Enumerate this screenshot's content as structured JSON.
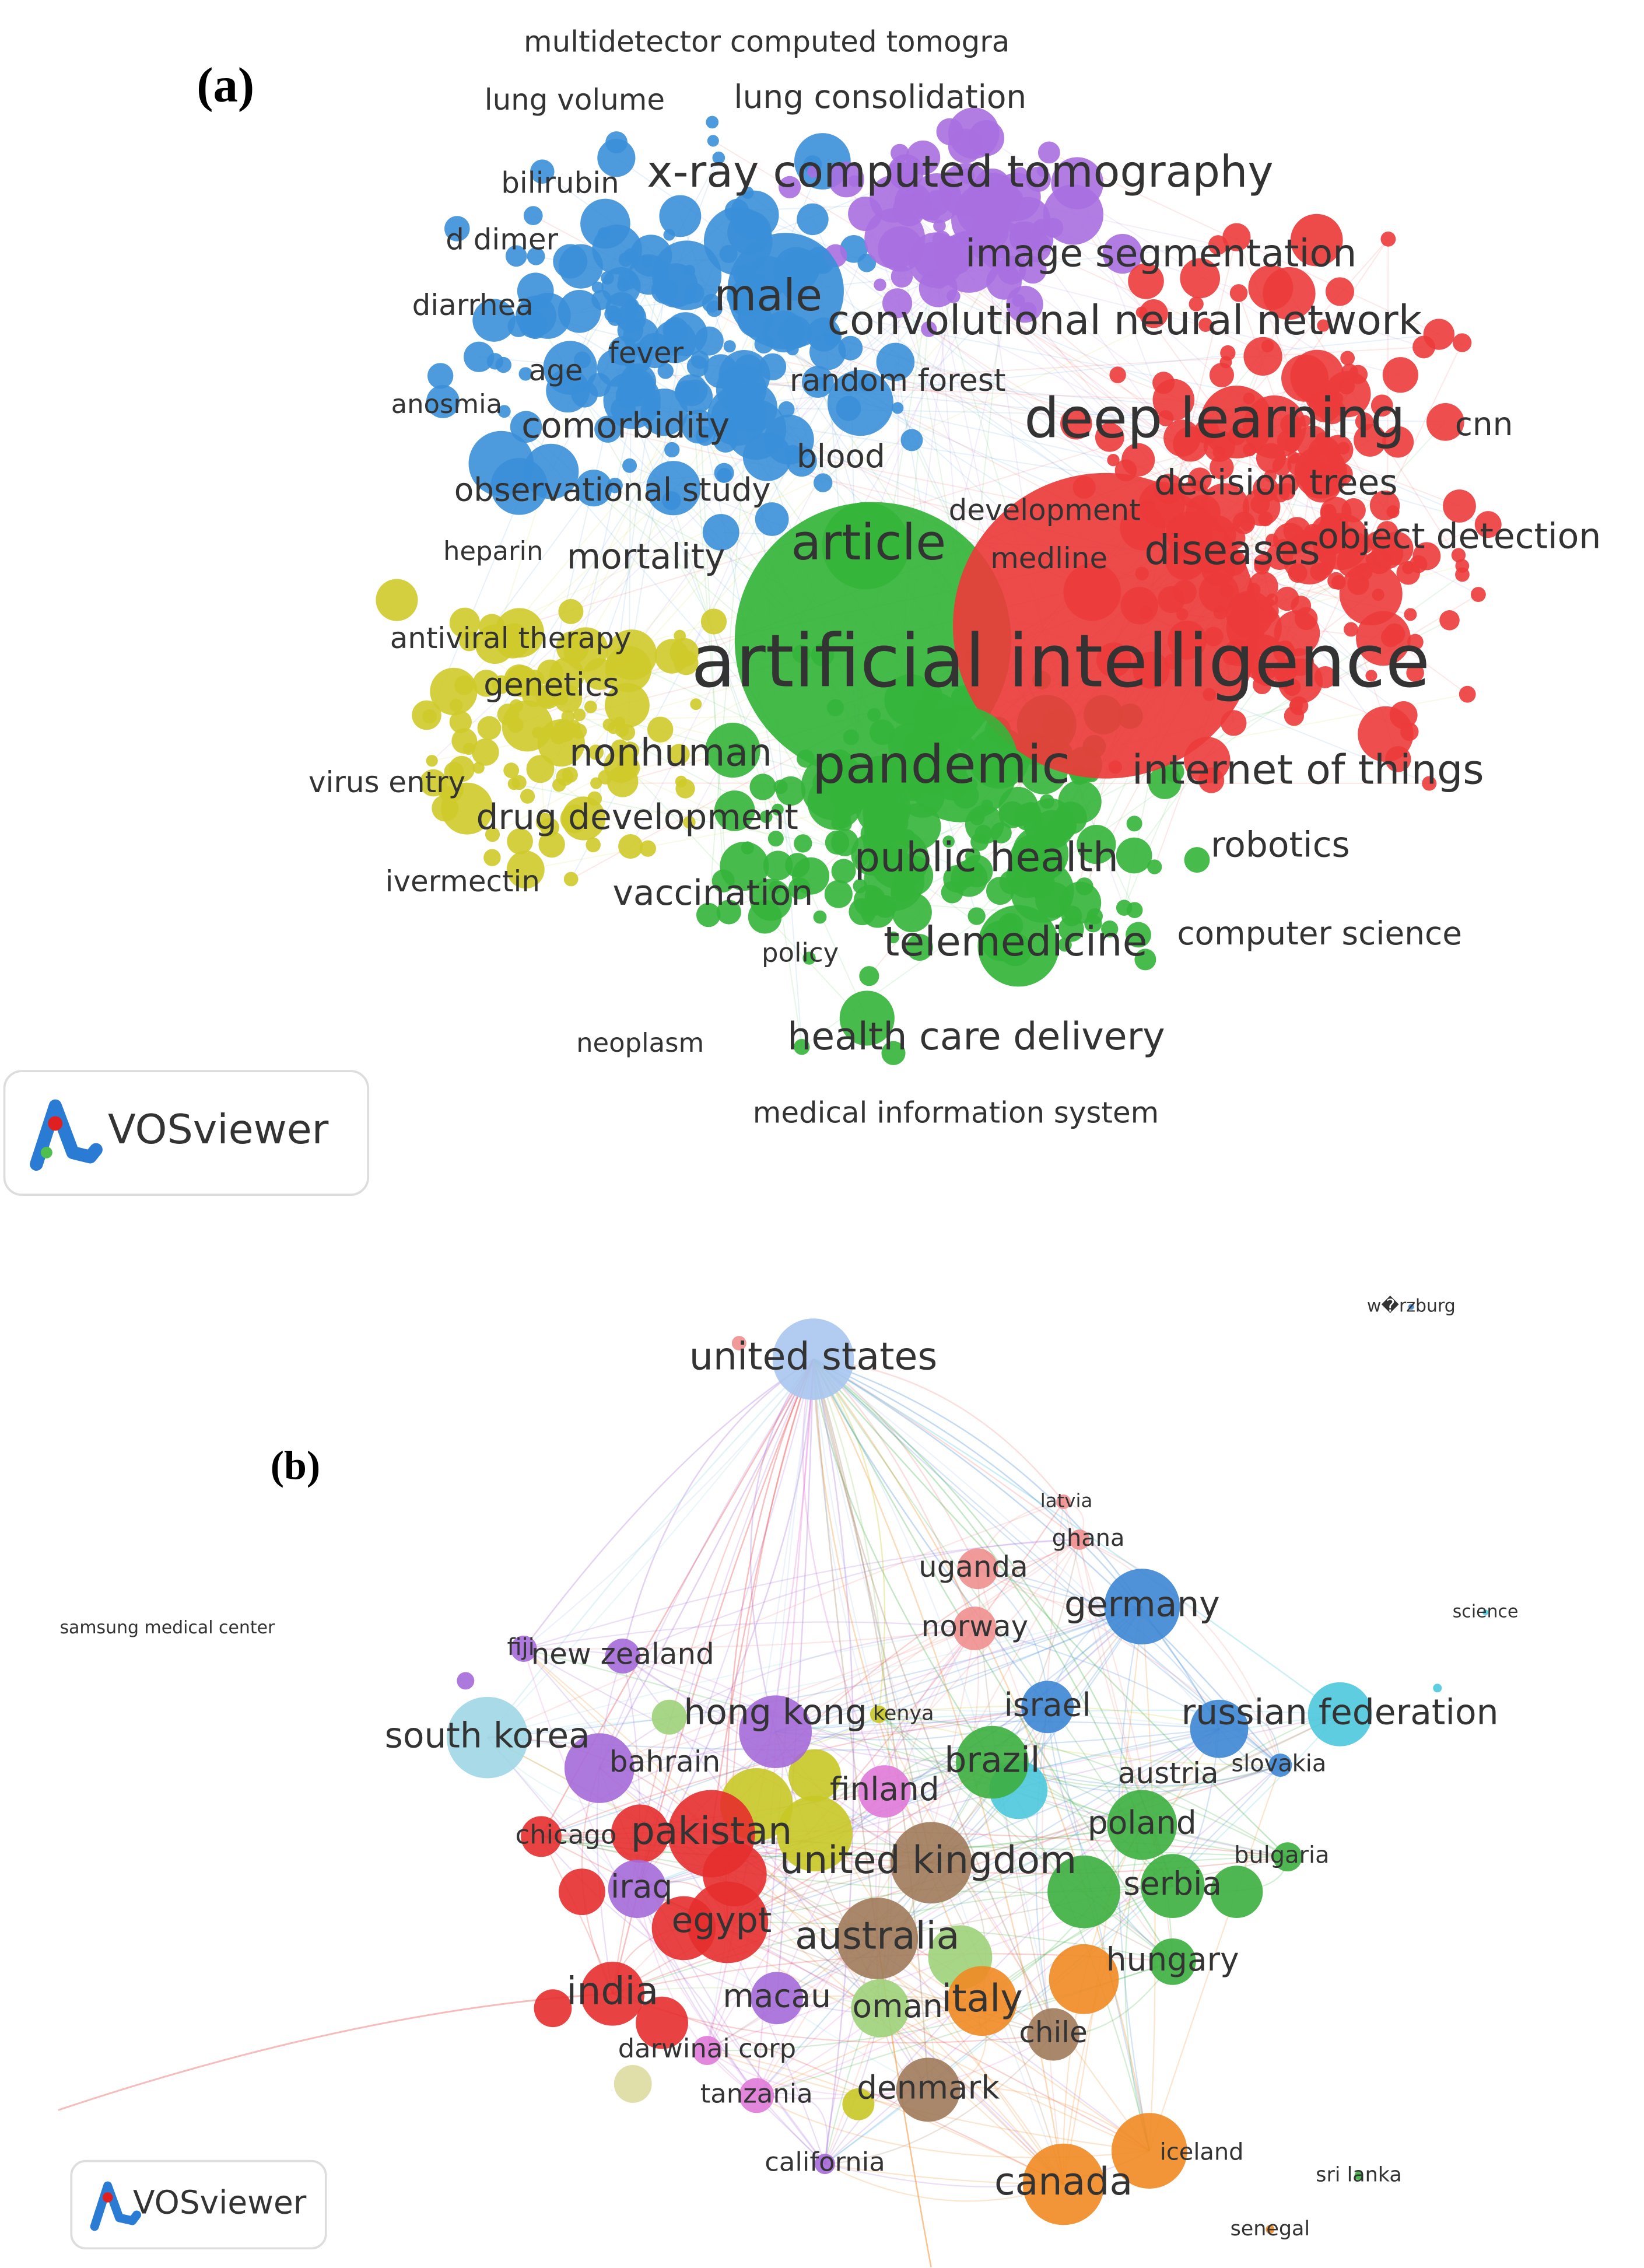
{
  "panel_a": {
    "label": "(a)",
    "logo": "VOSviewer",
    "keywords": [
      "multidetector computed tomogra",
      "lung volume",
      "lung consolidation",
      "bilirubin",
      "x-ray computed tomography",
      "d dimer",
      "image segmentation",
      "diarrhea",
      "male",
      "convolutional neural network",
      "age",
      "fever",
      "random forest",
      "anosmia",
      "comorbidity",
      "deep learning",
      "cnn",
      "blood",
      "decision trees",
      "observational study",
      "development",
      "heparin",
      "mortality",
      "article",
      "medline",
      "diseases",
      "object detection",
      "antiviral therapy",
      "artificial intelligence",
      "genetics",
      "nonhuman",
      "pandemic",
      "internet of things",
      "virus entry",
      "drug development",
      "public health",
      "robotics",
      "ivermectin",
      "vaccination",
      "computer science",
      "telemedicine",
      "policy",
      "health care delivery",
      "neoplasm",
      "medical information system"
    ]
  },
  "panel_b": {
    "label": "(b)",
    "logo": "VOSviewer",
    "nodes": [
      "w�rzburg",
      "united states",
      "latvia",
      "ghana",
      "uganda",
      "samsung medical center",
      "science",
      "germany",
      "norway",
      "fiji",
      "new zealand",
      "hong kong",
      "kenya",
      "israel",
      "russian federation",
      "south korea",
      "bahrain",
      "brazil",
      "austria",
      "slovakia",
      "finland",
      "poland",
      "chicago",
      "pakistan",
      "united kingdom",
      "bulgaria",
      "iraq",
      "serbia",
      "egypt",
      "australia",
      "hungary",
      "india",
      "macau",
      "oman",
      "italy",
      "chile",
      "darwinai corp",
      "tanzania",
      "denmark",
      "california",
      "iceland",
      "sri lanka",
      "canada",
      "senegal"
    ]
  }
}
